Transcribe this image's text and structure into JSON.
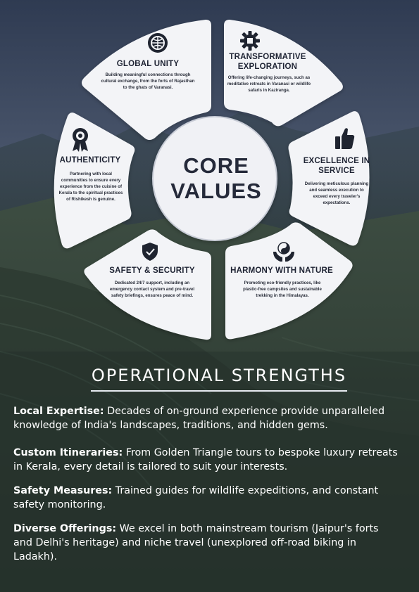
{
  "core": {
    "line1": "CORE",
    "line2": "VALUES"
  },
  "values": [
    {
      "title": "GLOBAL UNITY",
      "icon": "globe-target-icon",
      "desc": [
        "Building meaningful connections through",
        "cultural exchange, from the forts of Rajasthan",
        "to the ghats of Varanasi."
      ]
    },
    {
      "title": "TRANSFORMATIVE",
      "title2": "EXPLORATION",
      "icon": "gear-icon",
      "desc": [
        "Offering life-changing journeys, such as",
        "meditative retreats in Varanasi or wildlife",
        "safaris in Kaziranga."
      ]
    },
    {
      "title": "EXCELLENCE IN",
      "title2": "SERVICE",
      "icon": "thumbs-up-icon",
      "desc": [
        "Delivering meticulous planning",
        "and seamless execution to",
        "exceed every traveler's",
        "expectations."
      ]
    },
    {
      "title": "HARMONY WITH NATURE",
      "icon": "yin-yang-hands-icon",
      "desc": [
        "Promoting eco-friendly practices, like",
        "plastic-free campsites and sustainable",
        "trekking in the Himalayas."
      ]
    },
    {
      "title": "SAFETY & SECURITY",
      "icon": "shield-check-icon",
      "desc": [
        "Dedicated 24/7 support, including an",
        "emergency contact system and pre-travel",
        "safety briefings, ensures peace of mind."
      ]
    },
    {
      "title": "AUTHENTICITY",
      "icon": "award-ribbon-icon",
      "desc": [
        "Partnering with local",
        "communities to ensure every",
        "experience from the cuisine of",
        "Kerala to the spiritual practices",
        "of Rishikesh is genuine."
      ]
    }
  ],
  "operational": {
    "heading": "OPERATIONAL STRENGTHS",
    "items": [
      {
        "label": "Local Expertise:",
        "text": " Decades of on-ground experience provide unparalleled",
        "text2": "knowledge of India's landscapes, traditions, and hidden gems."
      },
      {
        "label": "Custom Itineraries:",
        "text": " From Golden Triangle tours to bespoke luxury retreats",
        "text2": "in Kerala, every detail is tailored to suit your interests."
      },
      {
        "label": "Safety Measures:",
        "text": " Trained guides for wildlife expeditions, and constant",
        "text2": "safety monitoring."
      },
      {
        "label": "Diverse Offerings:",
        "text": " We excel in both mainstream tourism (Jaipur's forts",
        "text2": "and Delhi's heritage) and niche travel (unexplored off-road biking in",
        "text3": "Ladakh)."
      }
    ]
  },
  "colors": {
    "petal": "#f3f4f7",
    "text_dark": "#1e2333",
    "background": "#2f3a4c"
  }
}
